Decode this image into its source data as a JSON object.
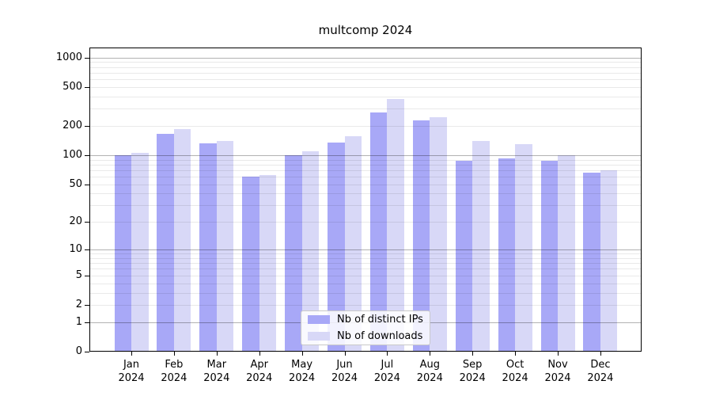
{
  "chart_data": {
    "type": "bar",
    "title": "multcomp 2024",
    "categories": [
      "Jan 2024",
      "Feb 2024",
      "Mar 2024",
      "Apr 2024",
      "May 2024",
      "Jun 2024",
      "Jul 2024",
      "Aug 2024",
      "Sep 2024",
      "Oct 2024",
      "Nov 2024",
      "Dec 2024"
    ],
    "series": [
      {
        "name": "Nb of distinct IPs",
        "color": "#a8a8f7",
        "values": [
          99,
          165,
          132,
          60,
          99,
          136,
          273,
          228,
          87,
          93,
          88,
          66
        ]
      },
      {
        "name": "Nb of downloads",
        "color": "#d8d8f7",
        "values": [
          105,
          185,
          139,
          62,
          110,
          158,
          380,
          247,
          139,
          131,
          100,
          70
        ]
      }
    ],
    "xlabel": "",
    "ylabel": "",
    "yscale": "log10(value+1)",
    "ylim": [
      0,
      1000
    ],
    "yticks": [
      0,
      1,
      2,
      5,
      10,
      20,
      50,
      100,
      200,
      500,
      1000
    ],
    "grid": true,
    "legend_position": "inside-bottom-center",
    "colors": {
      "background": "#ffffff",
      "axis": "#000000",
      "major_gridline": "#b0b0b0",
      "minor_gridline": "#e8e8e8",
      "tick_label": "#000000"
    }
  }
}
